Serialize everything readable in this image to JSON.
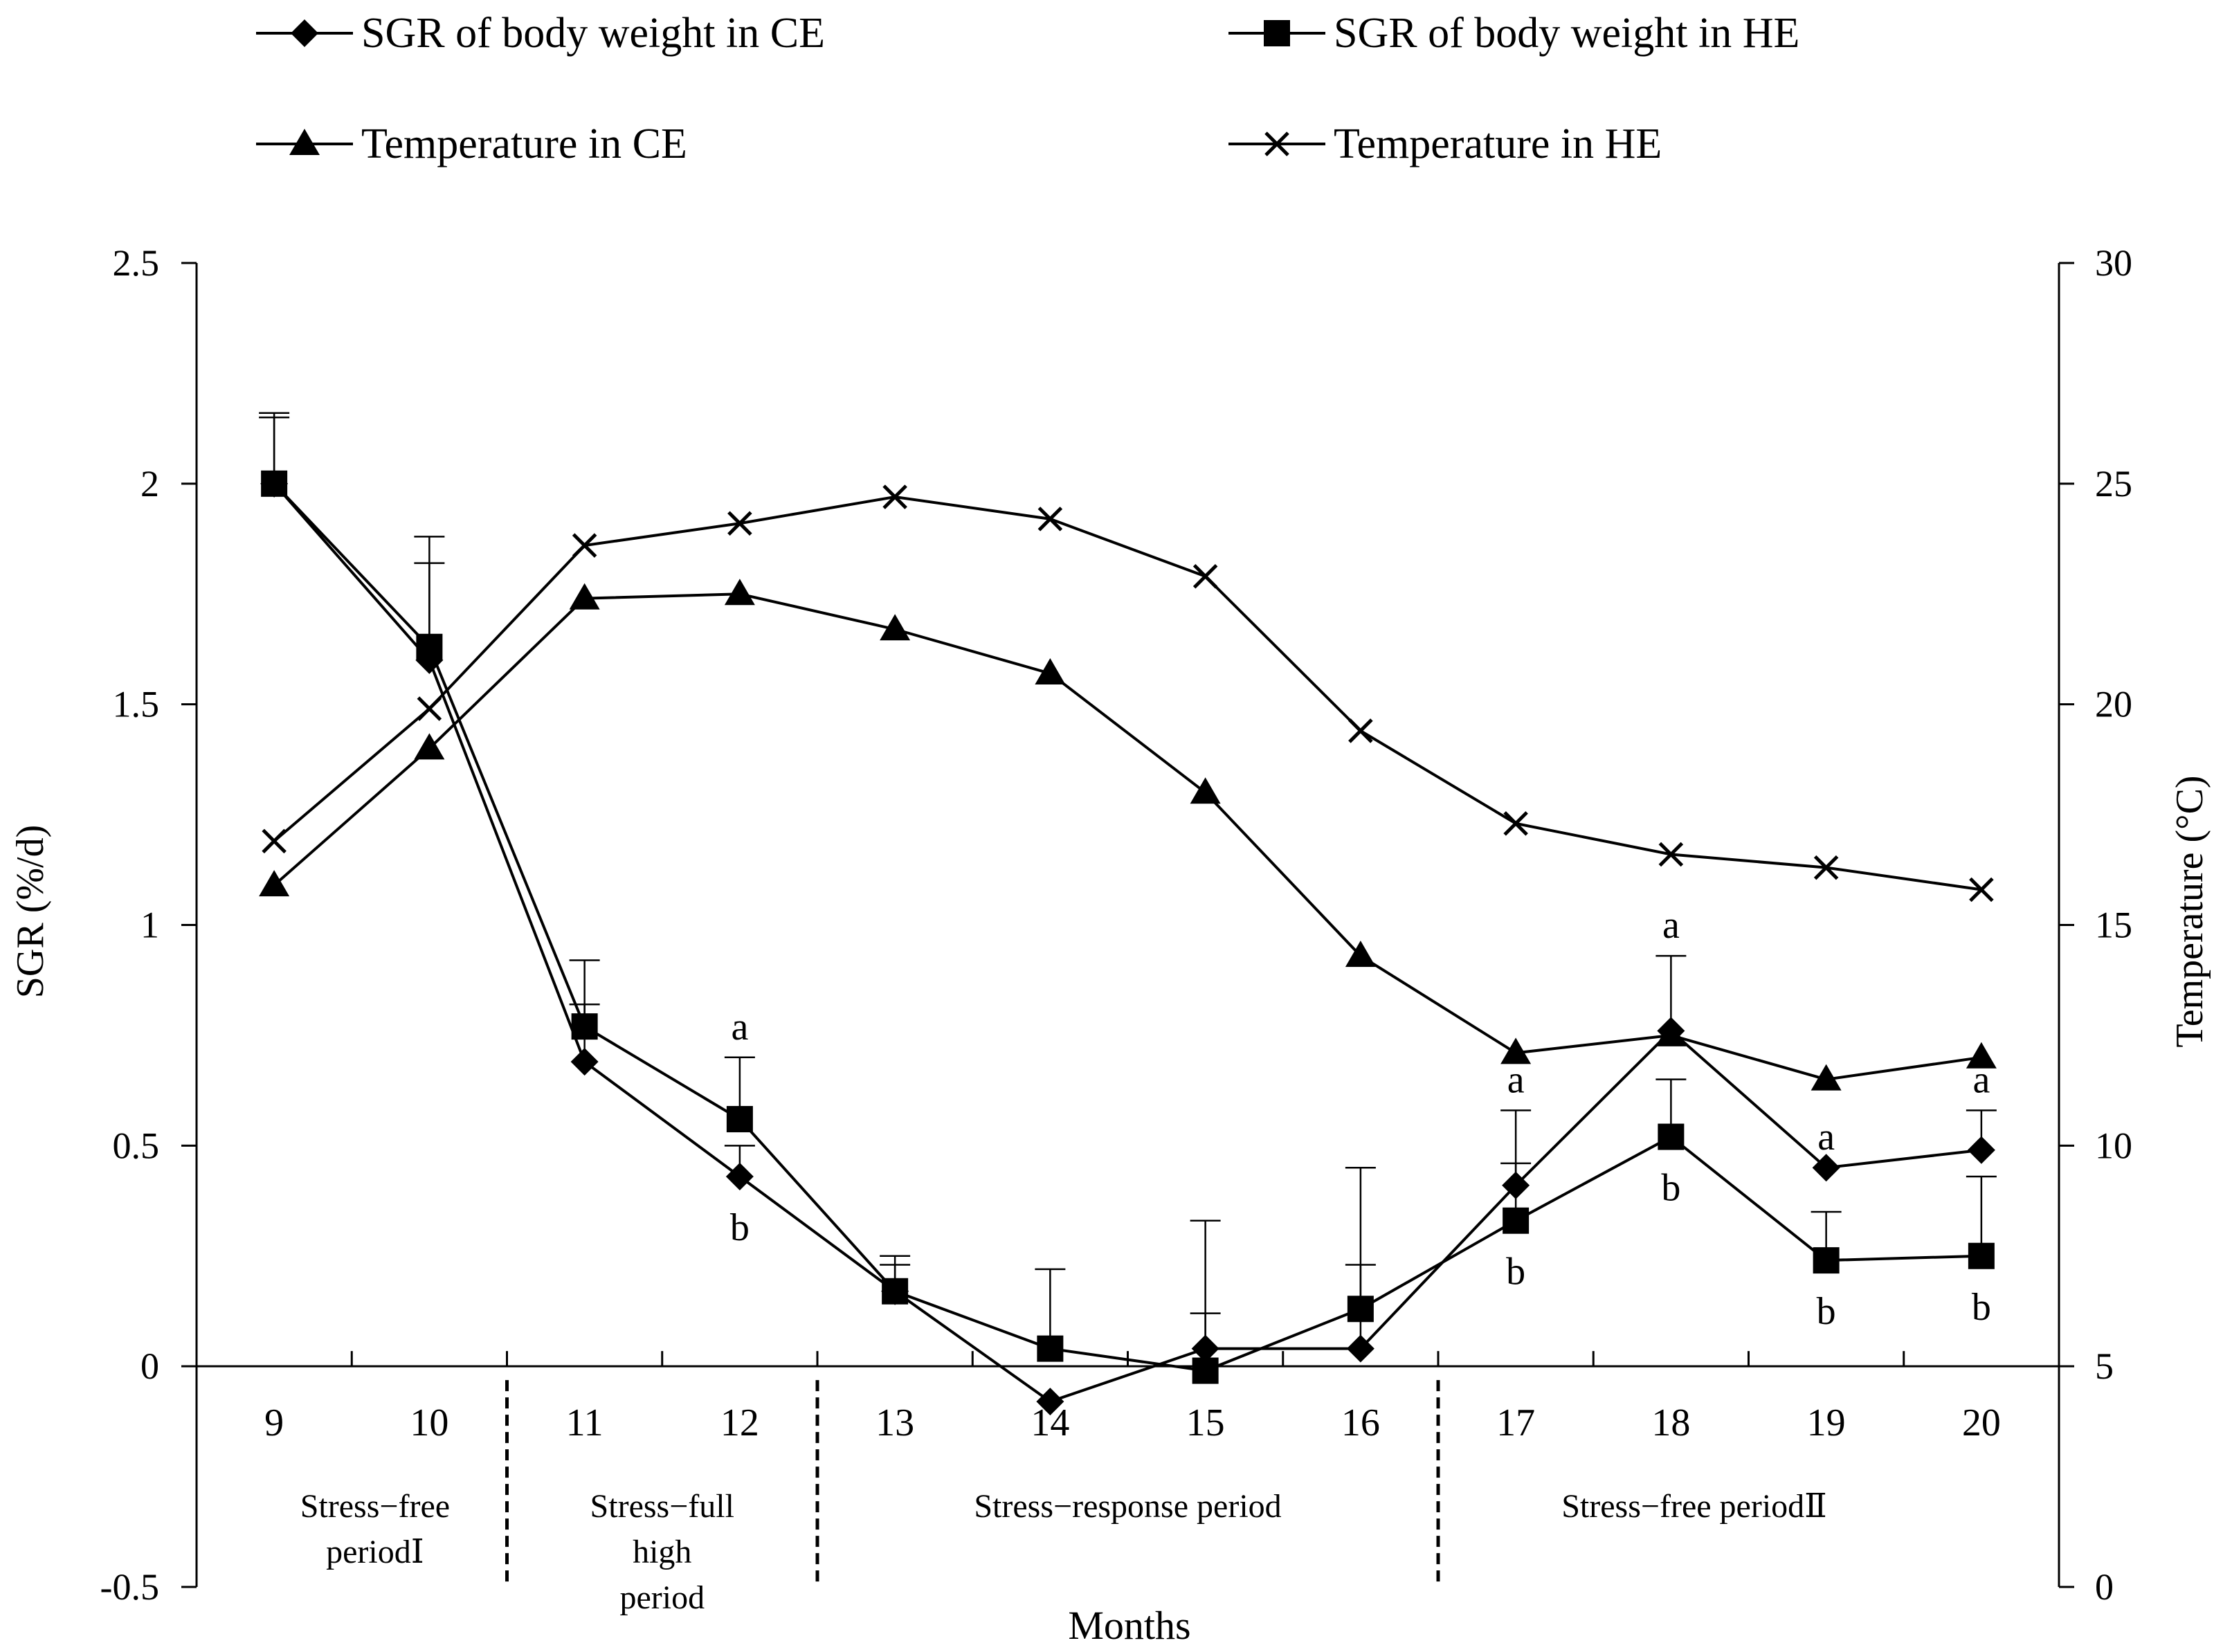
{
  "chart_data": {
    "type": "line",
    "xlabel": "Months",
    "ylabel_left": "SGR (%/d)",
    "ylabel_right": "Temperature (°C)",
    "ylim_left": [
      -0.5,
      2.5
    ],
    "yticks_left": [
      "-0.5",
      "0",
      "0.5",
      "1",
      "1.5",
      "2",
      "2.5"
    ],
    "ylim_right": [
      0,
      30
    ],
    "yticks_right": [
      "0",
      "5",
      "10",
      "15",
      "20",
      "25",
      "30"
    ],
    "x": [
      9,
      10,
      11,
      12,
      13,
      14,
      15,
      16,
      17,
      18,
      19,
      20
    ],
    "x_tick_labels": [
      "9",
      "10",
      "11",
      "12",
      "13",
      "14",
      "15",
      "16",
      "17",
      "18",
      "19",
      "20"
    ],
    "grid": false,
    "legend_position": "top",
    "series": [
      {
        "name": "SGR of body weight in CE",
        "axis": "left",
        "marker": "diamond",
        "values": [
          2.0,
          1.6,
          0.69,
          0.43,
          0.17,
          -0.08,
          0.04,
          0.04,
          0.41,
          0.76,
          0.45,
          0.49
        ],
        "error_upper": [
          2.15,
          1.82,
          0.82,
          0.5,
          0.23,
          null,
          0.12,
          0.23,
          0.58,
          0.93,
          null,
          0.58
        ]
      },
      {
        "name": "SGR of body weight in HE",
        "axis": "left",
        "marker": "square",
        "values": [
          2.0,
          1.63,
          0.77,
          0.56,
          0.17,
          0.04,
          -0.01,
          0.13,
          0.33,
          0.52,
          0.24,
          0.25
        ],
        "error_upper": [
          2.16,
          1.88,
          0.92,
          0.7,
          0.25,
          0.22,
          0.33,
          0.45,
          0.46,
          0.65,
          0.35,
          0.43
        ]
      },
      {
        "name": "Temperature in CE",
        "axis": "right",
        "marker": "triangle",
        "values": [
          15.9,
          19.0,
          22.4,
          22.5,
          21.7,
          20.7,
          18.0,
          14.3,
          12.1,
          12.5,
          11.5,
          12.0
        ]
      },
      {
        "name": "Temperature in HE",
        "axis": "right",
        "marker": "x",
        "values": [
          16.9,
          19.9,
          23.6,
          24.1,
          24.7,
          24.2,
          22.9,
          19.4,
          17.3,
          16.6,
          16.3,
          15.8
        ]
      }
    ],
    "significance_letters": [
      {
        "x": 12,
        "above": "a",
        "below": "b"
      },
      {
        "x": 17,
        "above": "a",
        "below": "b"
      },
      {
        "x": 18,
        "above": "a",
        "below": "b"
      },
      {
        "x": 19,
        "above": "a",
        "below": "b"
      },
      {
        "x": 20,
        "above": "a",
        "below": "b"
      }
    ],
    "periods": [
      {
        "lines": [
          "Stress−free",
          "periodⅠ"
        ],
        "x_center": 9.65
      },
      {
        "lines": [
          "Stress−full",
          "high",
          "period"
        ],
        "x_center": 11.5
      },
      {
        "lines": [
          "Stress−response period"
        ],
        "x_center": 14.5
      },
      {
        "lines": [
          "Stress−free periodⅡ"
        ],
        "x_center": 18.15
      }
    ],
    "period_dividers": [
      10.5,
      12.5,
      16.5
    ]
  }
}
